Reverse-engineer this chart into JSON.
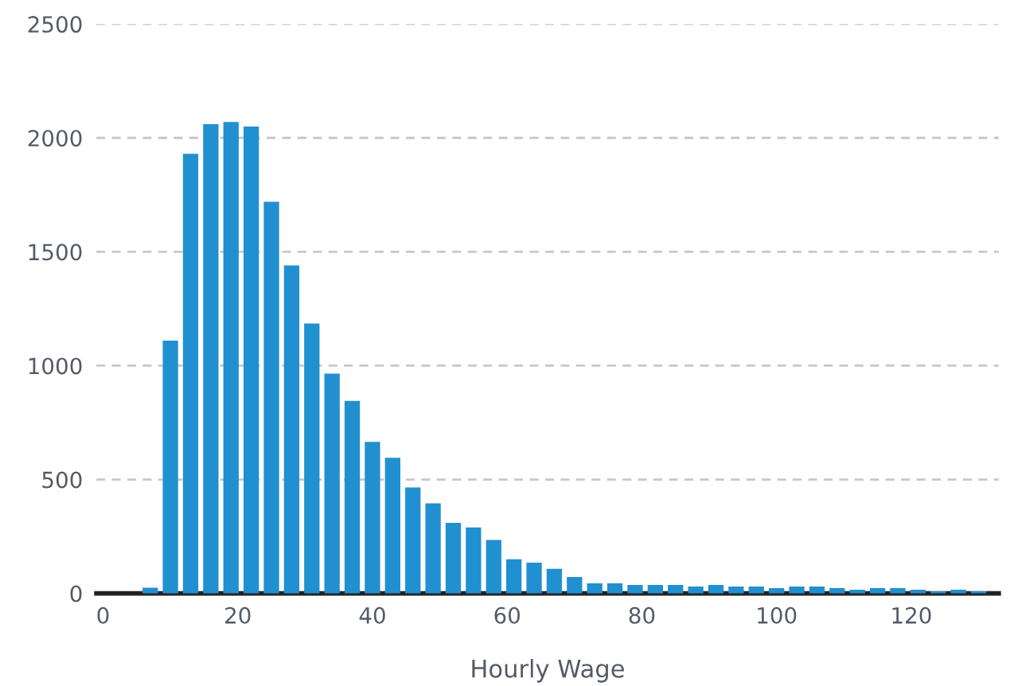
{
  "chart_data": {
    "type": "histogram",
    "xlabel": "Hourly Wage",
    "bins": [
      5.5,
      8.5,
      11.5,
      14.5,
      17.5,
      20.5,
      23.5,
      26.5,
      29.5,
      32.5,
      35.5,
      38.5,
      41.5,
      44.5,
      47.5,
      50.5,
      53.5,
      56.5,
      59.5,
      62.5,
      65.5,
      68.5,
      71.5,
      74.5,
      77.5,
      80.5,
      83.5,
      86.5,
      89.5,
      92.5,
      95.5,
      98.5,
      101.5,
      104.5,
      107.5,
      110.5,
      113.5,
      116.5,
      119.5,
      122.5,
      125.5,
      128.5,
      131.5
    ],
    "values": [
      25,
      1110,
      1930,
      2060,
      2070,
      2050,
      1720,
      1440,
      1185,
      965,
      845,
      665,
      595,
      465,
      395,
      310,
      290,
      235,
      150,
      135,
      108,
      72,
      44,
      44,
      37,
      37,
      37,
      30,
      37,
      30,
      30,
      23,
      30,
      30,
      23,
      16,
      23,
      23,
      16,
      9,
      16,
      9
    ],
    "color": "#2190d0",
    "xlim": [
      -1,
      133
    ],
    "xticks": [
      0,
      20,
      40,
      60,
      80,
      100,
      120
    ],
    "ylim": [
      0,
      2500
    ],
    "yticks": [
      0,
      500,
      1000,
      1500,
      2000,
      2500
    ],
    "grid": "y"
  }
}
